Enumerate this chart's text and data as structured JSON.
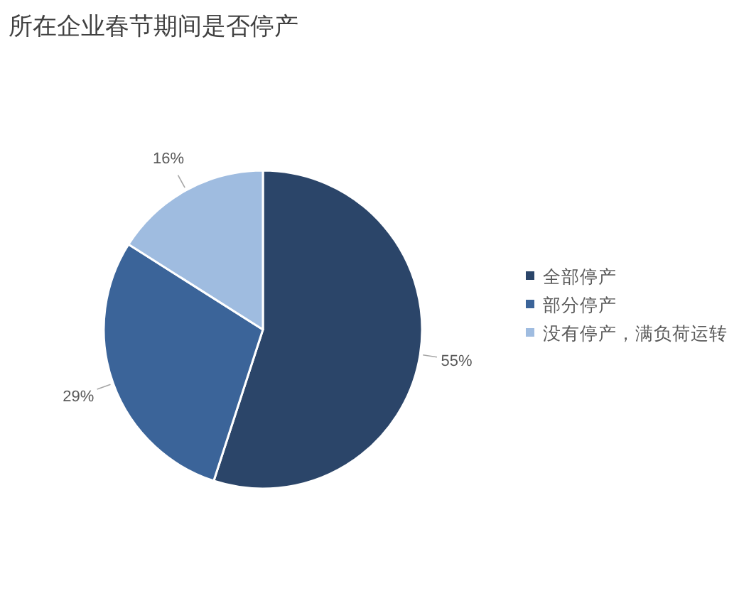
{
  "chart_data": {
    "type": "pie",
    "title": "所在企业春节期间是否停产",
    "categories": [
      "全部停产",
      "部分停产",
      "没有停产，满负荷运转"
    ],
    "values": [
      55,
      29,
      16
    ],
    "colors": [
      "#2b4569",
      "#3b6499",
      "#9fbce0"
    ],
    "value_labels": [
      "55%",
      "29%",
      "16%"
    ],
    "legend": "right"
  }
}
